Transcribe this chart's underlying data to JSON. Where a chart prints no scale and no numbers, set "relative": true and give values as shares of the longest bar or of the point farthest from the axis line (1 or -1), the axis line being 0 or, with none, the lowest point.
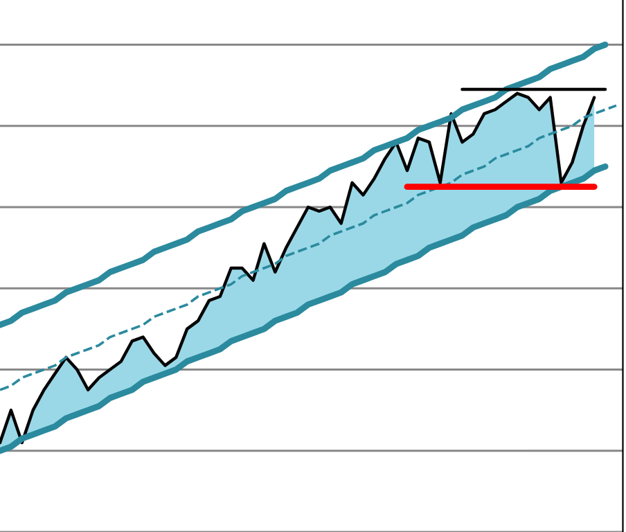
{
  "chart_data": {
    "type": "line",
    "relative": true,
    "grid": "y",
    "categories": [
      null,
      null,
      null,
      null,
      null,
      null,
      null,
      null,
      null,
      null,
      null,
      null,
      null,
      null,
      null,
      null,
      null,
      null,
      null,
      null,
      null,
      null,
      null,
      null,
      null,
      null,
      null,
      null,
      null,
      null,
      null,
      null,
      null,
      null,
      null,
      null,
      null,
      null,
      null,
      null,
      null,
      null,
      null,
      null,
      null,
      null,
      null,
      null,
      null,
      null,
      null,
      null,
      null,
      null,
      null,
      null,
      null
    ],
    "series": [
      {
        "color": "#050505",
        "line_style": "solid",
        "values": [
          0.02,
          0.1,
          0.02,
          0.1,
          0.15,
          0.19,
          0.23,
          0.2,
          0.15,
          0.18,
          0.2,
          0.22,
          0.27,
          0.28,
          0.24,
          0.21,
          0.23,
          0.3,
          0.32,
          0.37,
          0.38,
          0.45,
          0.45,
          0.42,
          0.51,
          0.44,
          0.5,
          0.55,
          0.6,
          0.59,
          0.6,
          0.56,
          0.66,
          0.63,
          0.67,
          0.72,
          0.76,
          0.69,
          0.77,
          0.76,
          0.66,
          0.83,
          0.76,
          0.78,
          0.83,
          0.84,
          0.86,
          0.88,
          0.87,
          0.84,
          0.87,
          0.66,
          0.71,
          0.8,
          0.87,
          null,
          null
        ],
        "lower": [
          0,
          0.01,
          0.03,
          0.04,
          0.05,
          0.06,
          0.08,
          0.09,
          0.1,
          0.11,
          0.13,
          0.14,
          0.15,
          0.17,
          0.18,
          0.19,
          0.2,
          0.22,
          0.23,
          0.24,
          0.25,
          0.27,
          0.28,
          0.29,
          0.3,
          0.32,
          0.33,
          0.34,
          0.36,
          0.37,
          0.38,
          0.39,
          0.41,
          0.42,
          0.43,
          0.44,
          0.46,
          0.47,
          0.48,
          0.5,
          0.51,
          0.52,
          0.53,
          0.55,
          0.56,
          0.57,
          0.58,
          0.6,
          0.61,
          0.62,
          0.64,
          0.65,
          0.66,
          0.67,
          0.69,
          null,
          null
        ],
        "upper": [
          0.02,
          0.1,
          0.02,
          0.1,
          0.15,
          0.19,
          0.23,
          0.2,
          0.15,
          0.18,
          0.2,
          0.22,
          0.27,
          0.28,
          0.24,
          0.21,
          0.23,
          0.3,
          0.32,
          0.37,
          0.38,
          0.45,
          0.45,
          0.42,
          0.51,
          0.44,
          0.5,
          0.55,
          0.6,
          0.59,
          0.6,
          0.56,
          0.66,
          0.63,
          0.67,
          0.72,
          0.76,
          0.69,
          0.77,
          0.76,
          0.66,
          0.83,
          0.76,
          0.78,
          0.83,
          0.84,
          0.86,
          0.88,
          0.87,
          0.84,
          0.87,
          0.66,
          0.71,
          0.8,
          0.87,
          null,
          null
        ]
      },
      {
        "color": "#2b8a9e",
        "line_style": "solid",
        "values": [
          0.31,
          0.32,
          0.34,
          0.35,
          0.36,
          0.37,
          0.39,
          0.4,
          0.41,
          0.42,
          0.44,
          0.45,
          0.46,
          0.47,
          0.49,
          0.5,
          0.51,
          0.52,
          0.54,
          0.55,
          0.56,
          0.57,
          0.59,
          0.6,
          0.61,
          0.62,
          0.64,
          0.65,
          0.66,
          0.67,
          0.69,
          0.7,
          0.71,
          0.72,
          0.74,
          0.75,
          0.76,
          0.77,
          0.79,
          0.8,
          0.81,
          0.82,
          0.84,
          0.85,
          0.86,
          0.87,
          0.89,
          0.9,
          0.91,
          0.92,
          0.94,
          0.95,
          0.96,
          0.97,
          0.99,
          1.0,
          null
        ]
      },
      {
        "color": "#2b8a9e",
        "line_style": "solid",
        "values": [
          0,
          0.01,
          0.03,
          0.04,
          0.05,
          0.06,
          0.08,
          0.09,
          0.1,
          0.11,
          0.13,
          0.14,
          0.15,
          0.17,
          0.18,
          0.19,
          0.2,
          0.22,
          0.23,
          0.24,
          0.25,
          0.27,
          0.28,
          0.29,
          0.3,
          0.32,
          0.33,
          0.34,
          0.36,
          0.37,
          0.38,
          0.39,
          0.41,
          0.42,
          0.43,
          0.44,
          0.46,
          0.47,
          0.48,
          0.5,
          0.51,
          0.52,
          0.53,
          0.55,
          0.56,
          0.57,
          0.58,
          0.6,
          0.61,
          0.62,
          0.64,
          0.65,
          0.66,
          0.67,
          0.69,
          0.7,
          null
        ]
      },
      {
        "color": "#2b8a9e",
        "line_style": "dashed",
        "values": [
          0.15,
          0.16,
          0.18,
          0.19,
          0.2,
          0.21,
          0.23,
          0.24,
          0.25,
          0.26,
          0.28,
          0.29,
          0.3,
          0.31,
          0.33,
          0.34,
          0.35,
          0.36,
          0.38,
          0.39,
          0.4,
          0.41,
          0.43,
          0.44,
          0.45,
          0.46,
          0.48,
          0.49,
          0.5,
          0.51,
          0.53,
          0.54,
          0.55,
          0.56,
          0.58,
          0.59,
          0.6,
          0.61,
          0.63,
          0.64,
          0.65,
          0.66,
          0.68,
          0.69,
          0.7,
          0.72,
          0.73,
          0.74,
          0.75,
          0.77,
          0.78,
          0.79,
          0.8,
          0.82,
          0.83,
          0.84,
          0.85
        ]
      },
      {
        "color": "#ff0000",
        "line_style": "solid",
        "values": [
          null,
          null,
          null,
          null,
          null,
          null,
          null,
          null,
          null,
          null,
          null,
          null,
          null,
          null,
          null,
          null,
          null,
          null,
          null,
          null,
          null,
          null,
          null,
          null,
          null,
          null,
          null,
          null,
          null,
          null,
          null,
          null,
          null,
          null,
          null,
          null,
          null,
          0.65,
          0.65,
          0.65,
          0.65,
          0.65,
          0.65,
          0.65,
          0.65,
          0.65,
          0.65,
          0.65,
          0.65,
          0.65,
          0.65,
          0.65,
          0.65,
          0.65,
          0.65,
          null,
          null
        ]
      },
      {
        "color": "#050505",
        "line_style": "solid",
        "values": [
          null,
          null,
          null,
          null,
          null,
          null,
          null,
          null,
          null,
          null,
          null,
          null,
          null,
          null,
          null,
          null,
          null,
          null,
          null,
          null,
          null,
          null,
          null,
          null,
          null,
          null,
          null,
          null,
          null,
          null,
          null,
          null,
          null,
          null,
          null,
          null,
          null,
          null,
          null,
          null,
          null,
          null,
          0.89,
          0.89,
          0.89,
          0.89,
          0.89,
          0.89,
          0.89,
          0.89,
          0.89,
          0.89,
          0.89,
          0.89,
          0.89,
          0.89,
          null
        ]
      }
    ]
  }
}
